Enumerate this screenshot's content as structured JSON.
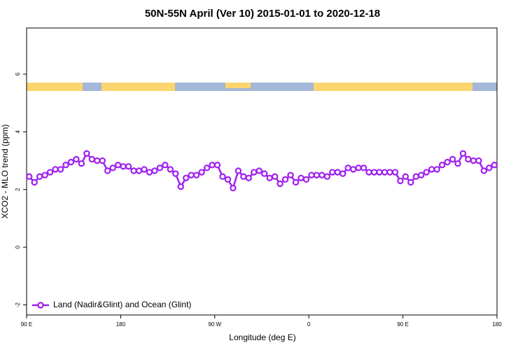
{
  "chart_data": {
    "type": "line",
    "title": "50N-55N April (Ver 10)   2015-01-01 to 2020-12-18",
    "xlabel": "Longitude (deg E)",
    "ylabel": "XCO2 - MLO trend (ppm)",
    "x": [
      92.5,
      97.5,
      102.5,
      107.5,
      112.5,
      117.5,
      122.5,
      127.5,
      132.5,
      137.5,
      142.5,
      147.5,
      152.5,
      157.5,
      162.5,
      167.5,
      172.5,
      177.5,
      182.5,
      187.5,
      192.5,
      197.5,
      202.5,
      207.5,
      212.5,
      217.5,
      222.5,
      227.5,
      232.5,
      237.5,
      242.5,
      247.5,
      252.5,
      257.5,
      262.5,
      267.5,
      272.5,
      277.5,
      282.5,
      287.5,
      292.5,
      297.5,
      302.5,
      307.5,
      312.5,
      317.5,
      322.5,
      327.5,
      332.5,
      337.5,
      342.5,
      347.5,
      352.5,
      357.5,
      362.5,
      367.5,
      372.5,
      377.5,
      382.5,
      387.5,
      392.5,
      397.5,
      402.5,
      407.5,
      412.5,
      417.5,
      422.5,
      427.5,
      432.5,
      437.5,
      442.5,
      447.5,
      452.5,
      457.5,
      462.5,
      467.5,
      472.5,
      477.5,
      482.5,
      487.5,
      492.5,
      497.5,
      502.5,
      507.5,
      512.5,
      517.5,
      522.5,
      527.5,
      532.5,
      537.5
    ],
    "series": [
      {
        "name": "Land (Nadir&Glint) and Ocean (Glint)",
        "color": "#a020f0",
        "values": [
          2.45,
          2.25,
          2.45,
          2.5,
          2.6,
          2.7,
          2.7,
          2.85,
          2.95,
          3.05,
          2.9,
          3.25,
          3.05,
          3.0,
          3.0,
          2.65,
          2.75,
          2.85,
          2.8,
          2.8,
          2.65,
          2.65,
          2.7,
          2.6,
          2.65,
          2.75,
          2.85,
          2.7,
          2.55,
          2.1,
          2.4,
          2.5,
          2.5,
          2.6,
          2.75,
          2.85,
          2.85,
          2.45,
          2.35,
          2.05,
          2.65,
          2.45,
          2.4,
          2.6,
          2.65,
          2.55,
          2.4,
          2.45,
          2.2,
          2.35,
          2.5,
          2.25,
          2.4,
          2.35,
          2.5,
          2.5,
          2.5,
          2.45,
          2.6,
          2.6,
          2.55,
          2.75,
          2.7,
          2.75,
          2.75,
          2.6,
          2.6,
          2.6,
          2.6,
          2.6,
          2.6,
          2.3,
          2.45,
          2.25,
          2.45,
          2.5,
          2.6,
          2.7,
          2.7,
          2.85,
          2.95,
          3.05,
          2.9,
          3.25,
          3.05,
          3.0,
          3.0,
          2.65,
          2.75,
          2.85
        ]
      }
    ],
    "xlim": [
      90,
      540
    ],
    "xticks": [
      {
        "value": 90,
        "label": "90 E"
      },
      180,
      {
        "value": 270,
        "label": "90 W"
      },
      {
        "value": 360,
        "label": "0"
      },
      {
        "value": 450,
        "label": "90 E"
      },
      {
        "value": 540,
        "label": "180"
      }
    ],
    "ylim": [
      -2.35,
      7.6
    ],
    "yticks": [
      -2,
      0,
      2,
      4,
      6
    ],
    "legend": "bottom-left"
  }
}
